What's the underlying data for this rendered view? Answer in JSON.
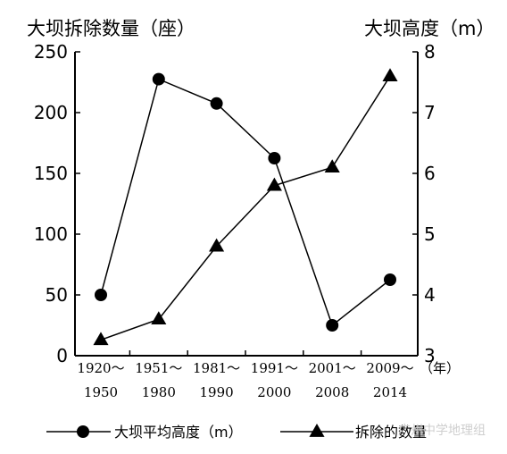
{
  "chart_data": {
    "type": "line",
    "title_left": "大坝拆除数量（座）",
    "title_right": "大坝高度（m）",
    "x_unit": "（年）",
    "categories": [
      {
        "top": "1920～",
        "bottom": "1950"
      },
      {
        "top": "1951～",
        "bottom": "1980"
      },
      {
        "top": "1981～",
        "bottom": "1990"
      },
      {
        "top": "1991～",
        "bottom": "2000"
      },
      {
        "top": "2001～",
        "bottom": "2008"
      },
      {
        "top": "2009～",
        "bottom": "2014"
      }
    ],
    "left_axis": {
      "ylim": [
        0,
        250
      ],
      "ticks": [
        "0",
        "50",
        "100",
        "150",
        "200",
        "250"
      ]
    },
    "right_axis": {
      "ylim": [
        3,
        8
      ],
      "ticks": [
        "3",
        "4",
        "5",
        "6",
        "7",
        "8"
      ]
    },
    "series": [
      {
        "name": "大坝平均高度（m）",
        "marker": "circle",
        "axis": "right",
        "values": [
          4.0,
          7.55,
          7.15,
          6.25,
          3.5,
          4.25
        ]
      },
      {
        "name": "拆除的数量",
        "marker": "triangle",
        "axis": "left",
        "values": [
          13,
          30,
          90,
          140,
          155,
          230
        ]
      }
    ],
    "grid": false,
    "legend_position": "bottom"
  },
  "watermark": "广州中学地理组"
}
